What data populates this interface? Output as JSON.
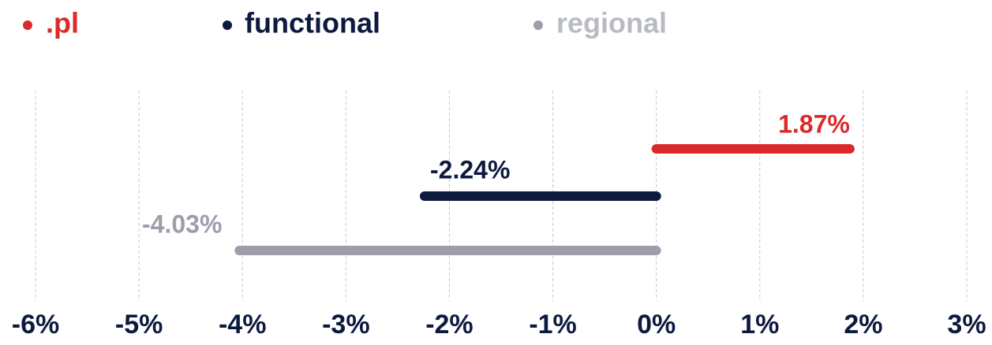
{
  "chart_data": {
    "type": "bar",
    "orientation": "horizontal",
    "series": [
      {
        "name": ".pl",
        "color": "#da2a2c",
        "values": [
          1.87
        ],
        "value_labels": [
          "1.87%"
        ]
      },
      {
        "name": "functional",
        "color": "#0d1a3f",
        "values": [
          -2.24
        ],
        "value_labels": [
          "-2.24%"
        ]
      },
      {
        "name": "regional",
        "color": "#9e9daa",
        "values": [
          -4.03
        ],
        "value_labels": [
          "-4.03%"
        ]
      }
    ],
    "xlim": [
      -6,
      3
    ],
    "xticks": [
      {
        "value": -6,
        "label": "-6%"
      },
      {
        "value": -5,
        "label": "-5%"
      },
      {
        "value": -4,
        "label": "-4%"
      },
      {
        "value": -3,
        "label": "-3%"
      },
      {
        "value": -2,
        "label": "-2%"
      },
      {
        "value": -1,
        "label": "-1%"
      },
      {
        "value": 0,
        "label": "0%"
      },
      {
        "value": 1,
        "label": "1%"
      },
      {
        "value": 2,
        "label": "2%"
      },
      {
        "value": 3,
        "label": "3%"
      }
    ],
    "grid": true,
    "legend": "top"
  }
}
